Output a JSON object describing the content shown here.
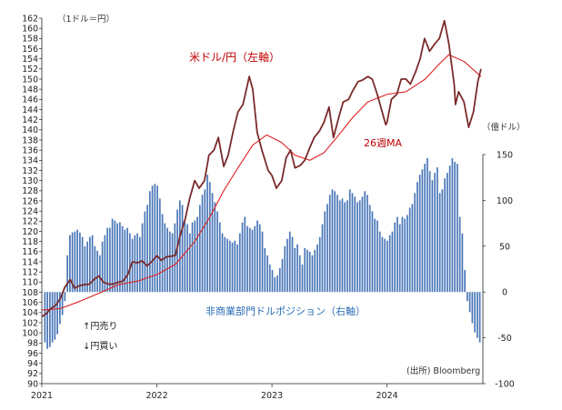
{
  "chart_data": {
    "type": "bar",
    "title": "",
    "x_axis": {
      "labels": [
        "2021",
        "2022",
        "2023",
        "2024"
      ],
      "range": [
        "2021-01-01",
        "2024-10-31"
      ]
    },
    "y_left": {
      "unit_label": "（1ドル＝円）",
      "min": 90,
      "max": 162,
      "step": 2
    },
    "y_right": {
      "unit_label": "（億ドル）",
      "min": -100,
      "max": 150,
      "step": 50,
      "tick_labels": [
        "150",
        "100",
        "50",
        "0",
        "-50",
        "-100"
      ]
    },
    "series": [
      {
        "name": "米ドル/円（左軸）",
        "type": "line",
        "axis": "left",
        "color": "#7b2b2b",
        "points": [
          [
            "2021-01-01",
            103.2
          ],
          [
            "2021-01-15",
            103.8
          ],
          [
            "2021-02-01",
            104.9
          ],
          [
            "2021-02-15",
            105.5
          ],
          [
            "2021-03-01",
            106.8
          ],
          [
            "2021-03-15",
            109.0
          ],
          [
            "2021-04-01",
            110.5
          ],
          [
            "2021-04-15",
            108.8
          ],
          [
            "2021-05-01",
            109.3
          ],
          [
            "2021-05-15",
            109.5
          ],
          [
            "2021-06-01",
            109.6
          ],
          [
            "2021-06-15",
            110.5
          ],
          [
            "2021-07-01",
            111.2
          ],
          [
            "2021-07-15",
            110.0
          ],
          [
            "2021-08-01",
            109.6
          ],
          [
            "2021-08-15",
            109.6
          ],
          [
            "2021-09-01",
            110.0
          ],
          [
            "2021-09-15",
            110.2
          ],
          [
            "2021-10-01",
            111.5
          ],
          [
            "2021-10-15",
            114.0
          ],
          [
            "2021-11-01",
            113.8
          ],
          [
            "2021-11-15",
            114.2
          ],
          [
            "2021-12-01",
            113.2
          ],
          [
            "2021-12-15",
            114.0
          ],
          [
            "2022-01-01",
            115.2
          ],
          [
            "2022-01-15",
            114.3
          ],
          [
            "2022-02-01",
            115.0
          ],
          [
            "2022-02-15",
            115.1
          ],
          [
            "2022-03-01",
            115.3
          ],
          [
            "2022-03-15",
            119.0
          ],
          [
            "2022-04-01",
            122.5
          ],
          [
            "2022-04-15",
            126.5
          ],
          [
            "2022-05-01",
            130.0
          ],
          [
            "2022-05-15",
            128.5
          ],
          [
            "2022-06-01",
            130.0
          ],
          [
            "2022-06-15",
            135.0
          ],
          [
            "2022-07-01",
            136.0
          ],
          [
            "2022-07-15",
            138.5
          ],
          [
            "2022-08-01",
            132.8
          ],
          [
            "2022-08-15",
            135.0
          ],
          [
            "2022-09-01",
            140.0
          ],
          [
            "2022-09-15",
            143.5
          ],
          [
            "2022-10-01",
            145.0
          ],
          [
            "2022-10-21",
            150.5
          ],
          [
            "2022-11-01",
            148.0
          ],
          [
            "2022-11-15",
            139.5
          ],
          [
            "2022-12-01",
            135.8
          ],
          [
            "2022-12-20",
            132.0
          ],
          [
            "2023-01-01",
            131.0
          ],
          [
            "2023-01-15",
            128.5
          ],
          [
            "2023-02-01",
            130.0
          ],
          [
            "2023-02-15",
            134.5
          ],
          [
            "2023-03-01",
            136.0
          ],
          [
            "2023-03-15",
            132.5
          ],
          [
            "2023-04-01",
            133.0
          ],
          [
            "2023-04-15",
            134.0
          ],
          [
            "2023-05-01",
            136.5
          ],
          [
            "2023-05-15",
            138.5
          ],
          [
            "2023-06-01",
            139.8
          ],
          [
            "2023-06-15",
            141.5
          ],
          [
            "2023-07-01",
            144.5
          ],
          [
            "2023-07-15",
            138.5
          ],
          [
            "2023-08-01",
            142.5
          ],
          [
            "2023-08-15",
            145.5
          ],
          [
            "2023-09-01",
            146.0
          ],
          [
            "2023-09-15",
            147.8
          ],
          [
            "2023-10-01",
            149.5
          ],
          [
            "2023-10-15",
            149.8
          ],
          [
            "2023-11-01",
            150.5
          ],
          [
            "2023-11-15",
            150.0
          ],
          [
            "2023-12-01",
            147.0
          ],
          [
            "2023-12-28",
            141.0
          ],
          [
            "2024-01-01",
            141.5
          ],
          [
            "2024-01-15",
            146.0
          ],
          [
            "2024-02-01",
            147.0
          ],
          [
            "2024-02-15",
            150.0
          ],
          [
            "2024-03-01",
            150.0
          ],
          [
            "2024-03-15",
            149.0
          ],
          [
            "2024-04-01",
            151.5
          ],
          [
            "2024-04-15",
            154.0
          ],
          [
            "2024-04-29",
            158.0
          ],
          [
            "2024-05-15",
            155.5
          ],
          [
            "2024-06-01",
            157.0
          ],
          [
            "2024-06-15",
            158.0
          ],
          [
            "2024-07-01",
            161.5
          ],
          [
            "2024-07-15",
            157.0
          ],
          [
            "2024-08-01",
            149.0
          ],
          [
            "2024-08-05",
            145.0
          ],
          [
            "2024-08-15",
            147.5
          ],
          [
            "2024-09-01",
            145.5
          ],
          [
            "2024-09-16",
            140.5
          ],
          [
            "2024-10-01",
            143.5
          ],
          [
            "2024-10-15",
            149.5
          ],
          [
            "2024-10-25",
            152.0
          ]
        ]
      },
      {
        "name": "26週MA",
        "type": "line",
        "axis": "left",
        "color": "#e02020",
        "points": [
          [
            "2021-01-01",
            104.5
          ],
          [
            "2021-03-01",
            104.8
          ],
          [
            "2021-05-01",
            106.2
          ],
          [
            "2021-07-01",
            107.8
          ],
          [
            "2021-09-01",
            109.5
          ],
          [
            "2021-11-01",
            110.2
          ],
          [
            "2022-01-01",
            111.5
          ],
          [
            "2022-03-01",
            113.5
          ],
          [
            "2022-05-01",
            118.0
          ],
          [
            "2022-06-15",
            122.5
          ],
          [
            "2022-08-01",
            128.0
          ],
          [
            "2022-09-15",
            132.5
          ],
          [
            "2022-11-01",
            137.0
          ],
          [
            "2022-12-15",
            139.0
          ],
          [
            "2023-02-01",
            137.5
          ],
          [
            "2023-03-15",
            135.0
          ],
          [
            "2023-05-01",
            134.0
          ],
          [
            "2023-06-15",
            135.5
          ],
          [
            "2023-08-01",
            139.0
          ],
          [
            "2023-09-15",
            142.5
          ],
          [
            "2023-11-01",
            145.5
          ],
          [
            "2024-01-01",
            147.0
          ],
          [
            "2024-03-01",
            147.5
          ],
          [
            "2024-05-01",
            150.0
          ],
          [
            "2024-06-15",
            153.0
          ],
          [
            "2024-07-15",
            154.8
          ],
          [
            "2024-09-01",
            153.5
          ],
          [
            "2024-10-25",
            150.5
          ]
        ]
      },
      {
        "name": "非商業部門ドルポジション（右軸）",
        "type": "bar",
        "axis": "right",
        "color": "#4a77b8",
        "weekly_values": [
          -55,
          -62,
          -60,
          -55,
          -52,
          -46,
          -35,
          -25,
          -10,
          40,
          62,
          65,
          66,
          68,
          65,
          60,
          50,
          55,
          60,
          62,
          50,
          45,
          40,
          55,
          62,
          70,
          70,
          80,
          78,
          75,
          76,
          72,
          68,
          70,
          64,
          58,
          62,
          64,
          60,
          75,
          88,
          95,
          110,
          116,
          118,
          116,
          102,
          85,
          75,
          70,
          66,
          64,
          75,
          90,
          100,
          95,
          76,
          74,
          64,
          76,
          78,
          82,
          95,
          106,
          112,
          128,
          120,
          108,
          98,
          88,
          76,
          64,
          60,
          58,
          56,
          54,
          56,
          52,
          64,
          76,
          82,
          72,
          70,
          68,
          72,
          78,
          74,
          66,
          48,
          40,
          30,
          24,
          16,
          18,
          26,
          36,
          50,
          58,
          66,
          60,
          48,
          52,
          40,
          30,
          48,
          46,
          44,
          40,
          46,
          52,
          60,
          74,
          88,
          96,
          106,
          112,
          110,
          106,
          100,
          102,
          98,
          100,
          112,
          108,
          104,
          98,
          100,
          104,
          110,
          106,
          95,
          88,
          80,
          78,
          66,
          60,
          58,
          56,
          62,
          66,
          76,
          82,
          74,
          82,
          80,
          84,
          92,
          96,
          108,
          120,
          128,
          134,
          140,
          146,
          132,
          122,
          130,
          136,
          108,
          112,
          124,
          130,
          138,
          146,
          142,
          140,
          82,
          64,
          24,
          -10,
          -22,
          -34,
          -44,
          -50,
          -55
        ]
      }
    ],
    "annotations": {
      "yen_sell": "↑円売り",
      "yen_buy": "↓円買い",
      "source": "(出所) Bloomberg"
    },
    "grid": false,
    "legend": "inline labels"
  }
}
